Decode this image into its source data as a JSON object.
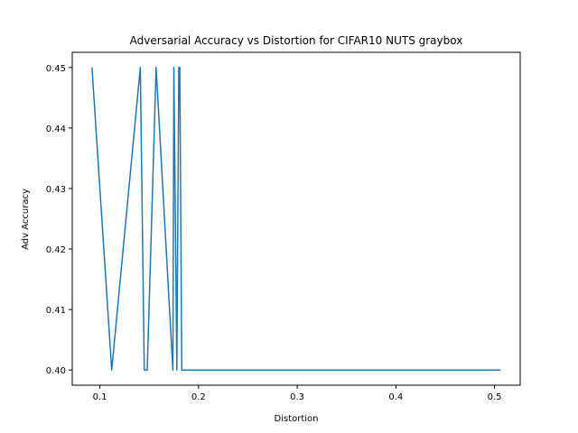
{
  "chart_data": {
    "type": "line",
    "title": "Adversarial Accuracy vs Distortion for CIFAR10 NUTS graybox",
    "xlabel": "Distortion",
    "ylabel": "Adv Accuracy",
    "xlim": [
      0.072,
      0.526
    ],
    "ylim": [
      0.3975,
      0.4525
    ],
    "x_ticks": [
      0.1,
      0.2,
      0.3,
      0.4,
      0.5
    ],
    "x_tick_labels": [
      "0.1",
      "0.2",
      "0.3",
      "0.4",
      "0.5"
    ],
    "y_ticks": [
      0.4,
      0.41,
      0.42,
      0.43,
      0.44,
      0.45
    ],
    "y_tick_labels": [
      "0.40",
      "0.41",
      "0.42",
      "0.43",
      "0.44",
      "0.45"
    ],
    "grid": false,
    "series": [
      {
        "color": "#1f77b4",
        "x": [
          0.092,
          0.112,
          0.141,
          0.145,
          0.148,
          0.157,
          0.174,
          0.175,
          0.178,
          0.18,
          0.181,
          0.183,
          0.19,
          0.25,
          0.35,
          0.45,
          0.506
        ],
        "y": [
          0.45,
          0.4,
          0.45,
          0.4,
          0.4,
          0.45,
          0.4,
          0.45,
          0.4,
          0.45,
          0.45,
          0.4,
          0.4,
          0.4,
          0.4,
          0.4,
          0.4
        ]
      }
    ]
  }
}
